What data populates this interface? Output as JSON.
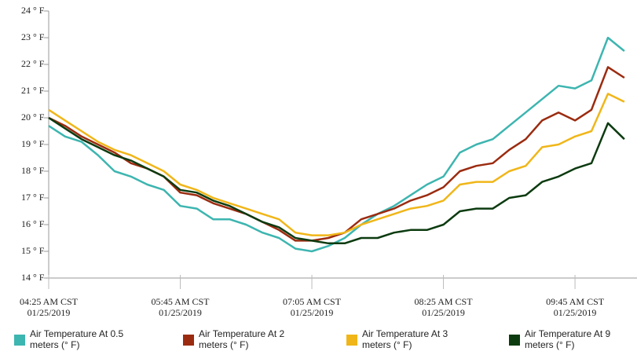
{
  "chart_data": {
    "type": "line",
    "categories": [
      "04:25 AM CST\n01/25/2019",
      null,
      null,
      null,
      null,
      null,
      null,
      null,
      "05:45 AM CST\n01/25/2019",
      null,
      null,
      null,
      null,
      null,
      null,
      null,
      "07:05 AM CST\n01/25/2019",
      null,
      null,
      null,
      null,
      null,
      null,
      null,
      "08:25 AM CST\n01/25/2019",
      null,
      null,
      null,
      null,
      null,
      null,
      null,
      "09:45 AM CST\n01/25/2019",
      null,
      null,
      null
    ],
    "series": [
      {
        "name": "Air Temperature At 0.5 meters (° F)",
        "color": "#3db5b0",
        "values": [
          19.7,
          19.3,
          19.1,
          18.6,
          18.0,
          17.8,
          17.5,
          17.3,
          16.7,
          16.6,
          16.2,
          16.2,
          16.0,
          15.7,
          15.5,
          15.1,
          15.0,
          15.2,
          15.5,
          16.0,
          16.4,
          16.7,
          17.1,
          17.5,
          17.8,
          18.7,
          19.0,
          19.2,
          19.7,
          20.2,
          20.7,
          21.2,
          21.1,
          21.4,
          23.0,
          22.5
        ]
      },
      {
        "name": "Air Temperature At 2 meters (° F)",
        "color": "#9b2b10",
        "values": [
          20.0,
          19.7,
          19.3,
          19.0,
          18.7,
          18.3,
          18.1,
          17.8,
          17.2,
          17.1,
          16.8,
          16.6,
          16.4,
          16.1,
          15.8,
          15.4,
          15.4,
          15.5,
          15.7,
          16.2,
          16.4,
          16.6,
          16.9,
          17.1,
          17.4,
          18.0,
          18.2,
          18.3,
          18.8,
          19.2,
          19.9,
          20.2,
          19.9,
          20.3,
          21.9,
          21.5
        ]
      },
      {
        "name": "Air Temperature At 3 meters (° F)",
        "color": "#f0b619",
        "values": [
          20.3,
          19.9,
          19.5,
          19.1,
          18.8,
          18.6,
          18.3,
          18.0,
          17.5,
          17.3,
          17.0,
          16.8,
          16.6,
          16.4,
          16.2,
          15.7,
          15.6,
          15.6,
          15.7,
          16.0,
          16.2,
          16.4,
          16.6,
          16.7,
          16.9,
          17.5,
          17.6,
          17.6,
          18.0,
          18.2,
          18.9,
          19.0,
          19.3,
          19.5,
          20.9,
          20.6
        ]
      },
      {
        "name": "Air Temperature At 9 meters (° F)",
        "color": "#0c3b10",
        "values": [
          20.0,
          19.6,
          19.2,
          18.9,
          18.6,
          18.4,
          18.1,
          17.8,
          17.3,
          17.2,
          16.9,
          16.7,
          16.4,
          16.1,
          15.9,
          15.5,
          15.4,
          15.3,
          15.3,
          15.5,
          15.5,
          15.7,
          15.8,
          15.8,
          16.0,
          16.5,
          16.6,
          16.6,
          17.0,
          17.1,
          17.6,
          17.8,
          18.1,
          18.3,
          19.8,
          19.2
        ]
      }
    ],
    "ylim": [
      14,
      24
    ],
    "yticks": [
      {
        "value": 14,
        "label": "14 ° F"
      },
      {
        "value": 15,
        "label": "15 ° F"
      },
      {
        "value": 16,
        "label": "16 ° F"
      },
      {
        "value": 17,
        "label": "17 ° F"
      },
      {
        "value": 18,
        "label": "18 ° F"
      },
      {
        "value": 19,
        "label": "19 ° F"
      },
      {
        "value": 20,
        "label": "20 ° F"
      },
      {
        "value": 21,
        "label": "21 ° F"
      },
      {
        "value": 22,
        "label": "22 ° F"
      },
      {
        "value": 23,
        "label": "23 ° F"
      },
      {
        "value": 24,
        "label": "24 ° F"
      }
    ],
    "grid": false,
    "legend": "bottom"
  }
}
